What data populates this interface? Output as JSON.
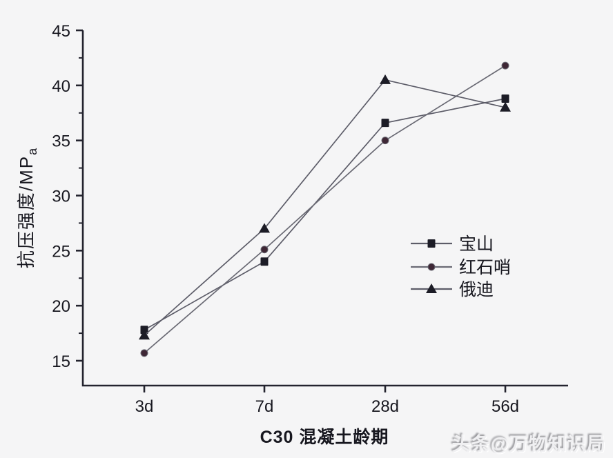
{
  "chart_data": {
    "type": "line",
    "title": "",
    "categories": [
      "3d",
      "7d",
      "28d",
      "56d"
    ],
    "series": [
      {
        "id": "baoshan",
        "name": "宝山",
        "marker": "square",
        "marker_color": "#1c1c26",
        "line_color": "#5c5c68",
        "values": [
          17.8,
          24.0,
          36.6,
          38.8
        ]
      },
      {
        "id": "hongshishao",
        "name": "红石哨",
        "marker": "circle",
        "marker_color": "#3e2735",
        "line_color": "#6a6a74",
        "values": [
          15.7,
          25.1,
          35.0,
          41.8
        ]
      },
      {
        "id": "edi",
        "name": "俄迪",
        "marker": "triangle",
        "marker_color": "#1c1c26",
        "line_color": "#5c5c68",
        "values": [
          17.3,
          27.0,
          40.5,
          38.0
        ]
      }
    ],
    "xlabel": "C30 混凝土龄期",
    "ylabel": "抗压强度/MPa",
    "ylabel_main": "抗压强度/MP",
    "ylabel_sub": "a",
    "ylim": [
      12.5,
      45
    ],
    "yticks": [
      15,
      20,
      25,
      30,
      35,
      40,
      45
    ],
    "y_minor_step": 2.5,
    "grid": false,
    "legend_position": "right-middle",
    "axis_color": "#23232e",
    "text_color": "#17171f",
    "background_color": "#f5f5f6"
  },
  "watermark": "头条@万物知识局"
}
